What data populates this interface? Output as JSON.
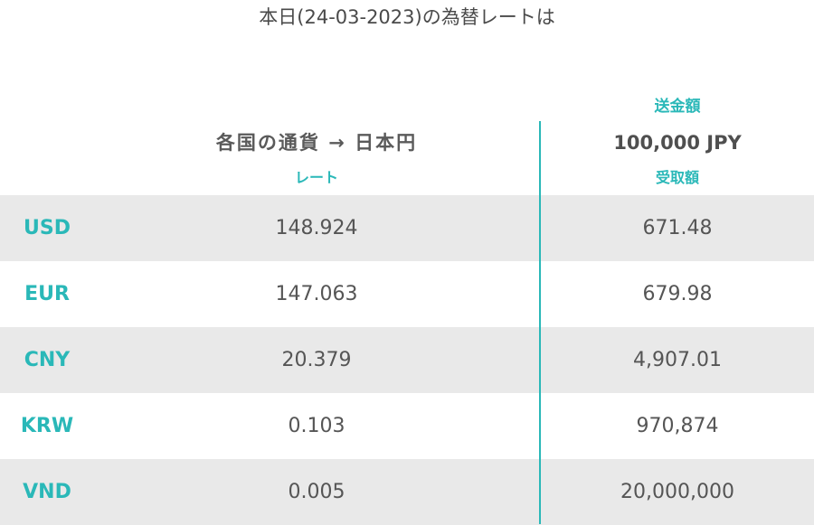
{
  "title": "本日(24-03-2023)の為替レートは",
  "headers": {
    "left_main": "各国の通貨 → 日本円",
    "left_sub": "レート",
    "right_top": "送金額",
    "right_amount": "100,000 JPY",
    "right_sub": "受取額"
  },
  "rows": [
    {
      "code": "USD",
      "rate": "148.924",
      "received": "671.48"
    },
    {
      "code": "EUR",
      "rate": "147.063",
      "received": "679.98"
    },
    {
      "code": "CNY",
      "rate": "20.379",
      "received": "4,907.01"
    },
    {
      "code": "KRW",
      "rate": "0.103",
      "received": "970,874"
    },
    {
      "code": "VND",
      "rate": "0.005",
      "received": "20,000,000"
    }
  ],
  "colors": {
    "accent": "#2ab8b8",
    "row_shade": "#e9e9e9",
    "text": "#555555"
  }
}
